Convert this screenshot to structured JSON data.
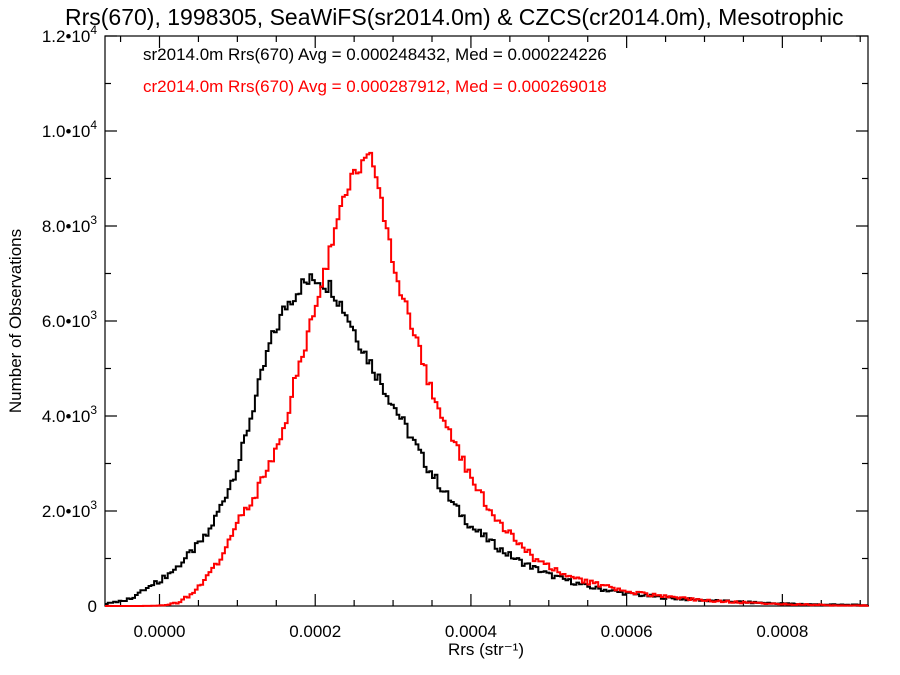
{
  "chart_data": {
    "type": "line",
    "title": "Rrs(670), 1998305, SeaWiFS(sr2014.0m) & CZCS(cr2014.0m), Mesotrophic",
    "xlabel": "Rrs (str⁻¹)",
    "ylabel": "Number of Observations",
    "xlim": [
      -7e-05,
      0.00091
    ],
    "ylim": [
      0,
      12000
    ],
    "x_ticks": [
      {
        "value": 0.0,
        "label": "0.0000"
      },
      {
        "value": 0.0002,
        "label": "0.0002"
      },
      {
        "value": 0.0004,
        "label": "0.0004"
      },
      {
        "value": 0.0006,
        "label": "0.0006"
      },
      {
        "value": 0.0008,
        "label": "0.0008"
      }
    ],
    "y_ticks": [
      {
        "value": 0,
        "mantissa": "0",
        "exponent": ""
      },
      {
        "value": 2000,
        "mantissa": "2.0",
        "exponent": "3"
      },
      {
        "value": 4000,
        "mantissa": "4.0",
        "exponent": "3"
      },
      {
        "value": 6000,
        "mantissa": "6.0",
        "exponent": "3"
      },
      {
        "value": 8000,
        "mantissa": "8.0",
        "exponent": "3"
      },
      {
        "value": 10000,
        "mantissa": "1.0",
        "exponent": "4"
      },
      {
        "value": 12000,
        "mantissa": "1.2",
        "exponent": "4"
      }
    ],
    "grid": false,
    "legend_position": "top-left",
    "series": [
      {
        "name": "sr2014.0m Rrs(670) Avg = 0.000248432, Med = 0.000224226",
        "color": "#000000",
        "x": [
          -7e-05,
          -4e-05,
          -2e-05,
          0.0,
          2e-05,
          4e-05,
          6e-05,
          8e-05,
          0.0001,
          0.00012,
          0.00014,
          0.00016,
          0.00018,
          0.0002,
          0.00022,
          0.00024,
          0.00026,
          0.00028,
          0.0003,
          0.00032,
          0.00034,
          0.00036,
          0.00038,
          0.0004,
          0.00042,
          0.00044,
          0.00046,
          0.00048,
          0.0005,
          0.00055,
          0.0006,
          0.00065,
          0.0007,
          0.00075,
          0.0008,
          0.00085,
          0.0009
        ],
        "y": [
          50,
          150,
          350,
          550,
          800,
          1150,
          1500,
          2200,
          3000,
          4250,
          5500,
          6300,
          6750,
          6900,
          6700,
          6100,
          5400,
          4800,
          4200,
          3600,
          3000,
          2500,
          2050,
          1650,
          1400,
          1150,
          950,
          800,
          650,
          400,
          260,
          170,
          120,
          80,
          50,
          30,
          20
        ]
      },
      {
        "name": "cr2014.0m Rrs(670) Avg = 0.000287912, Med = 0.000269018",
        "color": "#ff0000",
        "x": [
          -7e-05,
          -4e-05,
          -2e-05,
          0.0,
          2e-05,
          4e-05,
          6e-05,
          8e-05,
          0.0001,
          0.00012,
          0.00014,
          0.00016,
          0.00018,
          0.0002,
          0.00022,
          0.00024,
          0.00026,
          0.00027,
          0.00028,
          0.0003,
          0.00032,
          0.00034,
          0.00036,
          0.00038,
          0.0004,
          0.00042,
          0.00044,
          0.00046,
          0.00048,
          0.0005,
          0.00055,
          0.0006,
          0.00065,
          0.0007,
          0.00075,
          0.0008,
          0.00085,
          0.0009
        ],
        "y": [
          0,
          0,
          0,
          10,
          60,
          250,
          600,
          1100,
          1800,
          2300,
          3000,
          3900,
          5200,
          6400,
          7600,
          8800,
          9500,
          9450,
          8800,
          7200,
          6000,
          4900,
          4000,
          3300,
          2700,
          2100,
          1650,
          1300,
          1000,
          800,
          500,
          300,
          190,
          120,
          70,
          40,
          20,
          10
        ]
      }
    ]
  }
}
